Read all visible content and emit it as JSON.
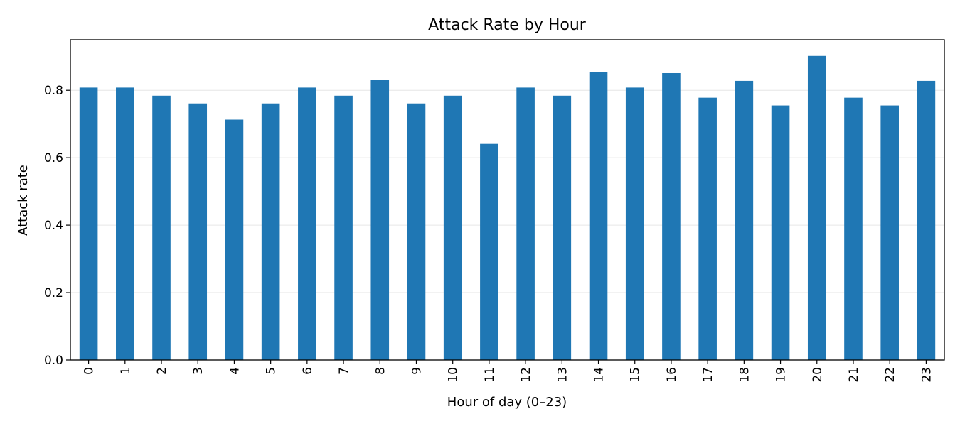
{
  "chart_data": {
    "type": "bar",
    "title": "Attack Rate by Hour",
    "xlabel": "Hour of day (0–23)",
    "ylabel": "Attack rate",
    "categories": [
      "0",
      "1",
      "2",
      "3",
      "4",
      "5",
      "6",
      "7",
      "8",
      "9",
      "10",
      "11",
      "12",
      "13",
      "14",
      "15",
      "16",
      "17",
      "18",
      "19",
      "20",
      "21",
      "22",
      "23"
    ],
    "values": [
      0.808,
      0.808,
      0.784,
      0.761,
      0.713,
      0.761,
      0.808,
      0.784,
      0.832,
      0.761,
      0.784,
      0.641,
      0.808,
      0.784,
      0.855,
      0.808,
      0.851,
      0.778,
      0.828,
      0.755,
      0.902,
      0.778,
      0.755,
      0.828
    ],
    "ylim": [
      0,
      0.95
    ],
    "yticks": [
      0.0,
      0.2,
      0.4,
      0.6,
      0.8
    ],
    "ytick_labels": [
      "0.0",
      "0.2",
      "0.4",
      "0.6",
      "0.8"
    ],
    "grid": "y",
    "legend": "none",
    "bar_color": "#1f77b4",
    "grid_color": "#e6e6e6"
  }
}
